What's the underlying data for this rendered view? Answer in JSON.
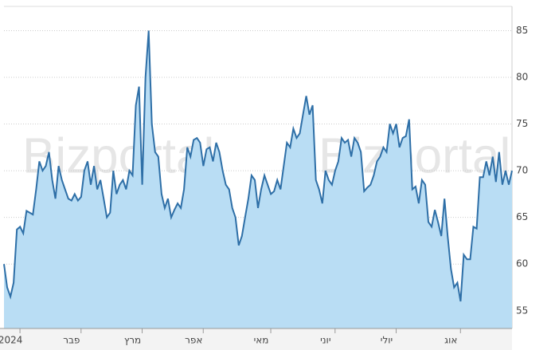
{
  "chart_data": {
    "type": "area",
    "watermark": "Bizportal",
    "values": [
      60,
      57.5,
      56.5,
      58,
      63.7,
      64,
      63.3,
      65.7,
      65.5,
      65.3,
      68,
      71,
      70,
      70.5,
      72,
      69,
      67,
      70.5,
      69,
      68,
      67,
      66.8,
      67.5,
      66.8,
      67.2,
      70,
      71,
      68.5,
      70.5,
      68,
      69,
      67,
      65,
      65.5,
      70,
      67.5,
      68.5,
      69,
      68,
      70,
      69.5,
      77,
      79,
      68.5,
      80,
      85,
      75,
      72,
      71.5,
      67.5,
      66,
      67,
      65,
      65.8,
      66.5,
      66,
      68,
      72.5,
      71.5,
      73.3,
      73.5,
      73,
      70.5,
      72.3,
      72.5,
      71,
      73,
      72,
      70,
      68.5,
      68,
      66,
      65,
      62,
      63,
      65,
      67,
      69.5,
      69,
      66,
      68,
      69.5,
      68.5,
      67.5,
      67.8,
      69,
      68,
      70.5,
      73,
      72.5,
      74.5,
      73.5,
      74,
      76,
      78,
      76,
      77,
      69,
      68,
      66.5,
      70,
      69,
      68.5,
      70,
      71,
      73.5,
      73,
      73.3,
      71.5,
      73.5,
      73,
      72,
      67.8,
      68.2,
      68.5,
      69.5,
      71,
      71.5,
      72.5,
      72,
      75,
      74,
      75,
      72.5,
      73.5,
      73.7,
      75.5,
      68,
      68.3,
      66.5,
      69,
      68.5,
      64.5,
      64,
      65.8,
      64.5,
      63,
      67,
      63,
      59.5,
      57.5,
      58,
      56,
      61,
      60.5,
      60.5,
      64,
      63.8,
      69.3,
      69.3,
      71,
      69.5,
      71.5,
      68.8,
      72,
      68.5,
      70,
      68.5,
      70
    ],
    "color": "#2e6fa7",
    "fill_color": "#b9ddf4",
    "xlim": [
      0,
      158
    ],
    "xticks": [
      {
        "value": 2,
        "label": "2024"
      },
      {
        "value": 21,
        "label": "פבר"
      },
      {
        "value": 40,
        "label": "מרץ"
      },
      {
        "value": 59,
        "label": "אפר"
      },
      {
        "value": 80,
        "label": "מאי"
      },
      {
        "value": 100,
        "label": "יוני"
      },
      {
        "value": 119,
        "label": "יולי"
      },
      {
        "value": 139,
        "label": "אוג"
      }
    ],
    "ylim": [
      53.1,
      87.6
    ],
    "yticks": [
      55,
      60,
      65,
      70,
      75,
      80,
      85
    ],
    "grid": true
  }
}
